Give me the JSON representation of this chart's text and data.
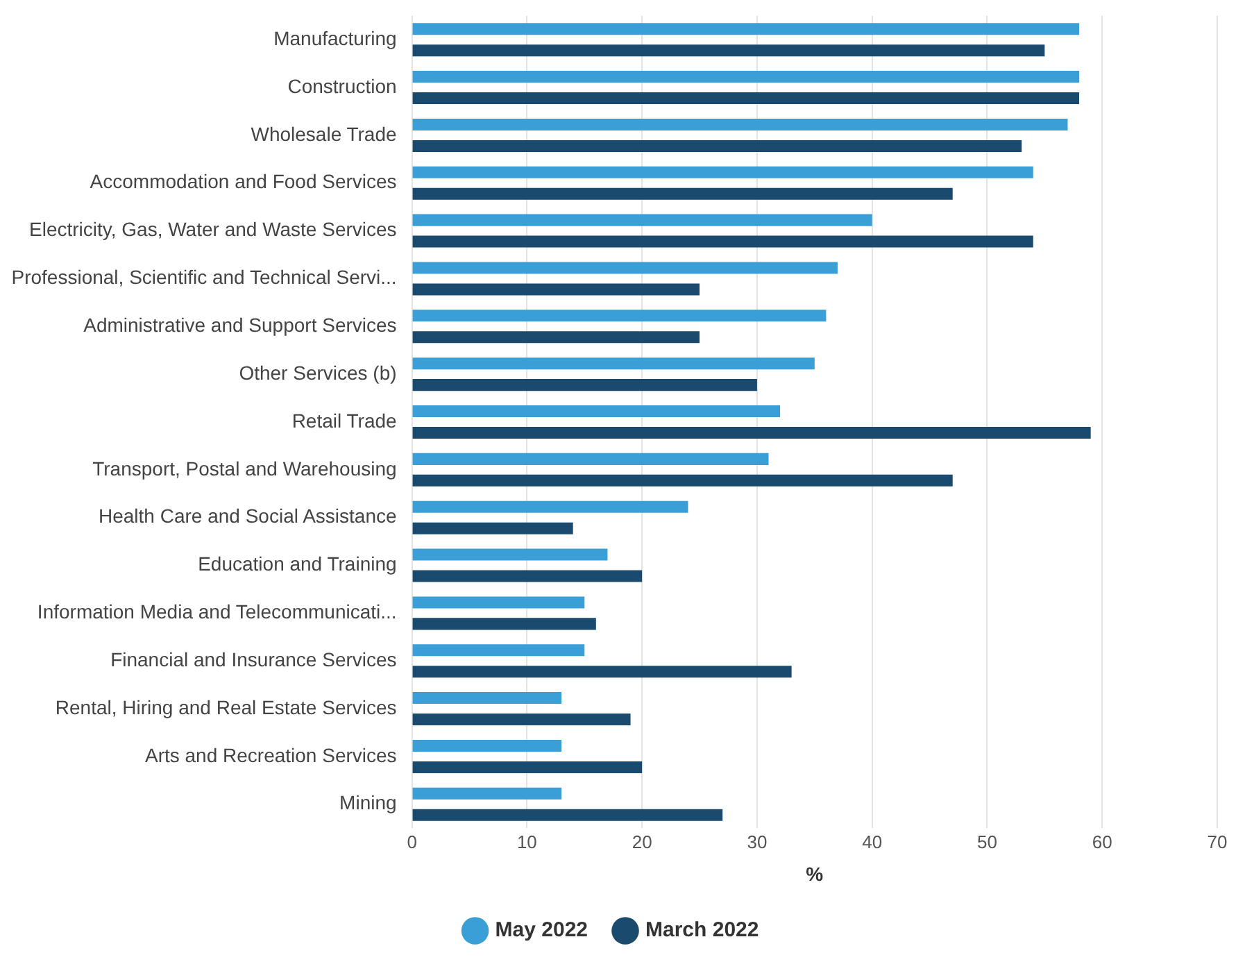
{
  "chart_data": {
    "type": "bar",
    "orientation": "horizontal",
    "xlabel": "%",
    "categories": [
      "Manufacturing",
      "Construction",
      "Wholesale Trade",
      "Accommodation and Food Services",
      "Electricity, Gas, Water and Waste Services",
      "Professional, Scientific and Technical Servi...",
      "Administrative and Support Services",
      "Other Services (b)",
      "Retail Trade",
      "Transport, Postal and Warehousing",
      "Health Care and Social Assistance",
      "Education and Training",
      "Information Media and Telecommunicati...",
      "Financial and Insurance Services",
      "Rental, Hiring and Real Estate Services",
      "Arts and Recreation Services",
      "Mining"
    ],
    "series": [
      {
        "name": "May 2022",
        "color": "#3a9fd6",
        "values": [
          58,
          58,
          57,
          54,
          40,
          37,
          36,
          35,
          32,
          31,
          24,
          17,
          15,
          15,
          13,
          13,
          13
        ]
      },
      {
        "name": "March 2022",
        "color": "#1a4a6e",
        "values": [
          55,
          58,
          53,
          47,
          54,
          25,
          25,
          30,
          59,
          47,
          14,
          20,
          16,
          33,
          19,
          20,
          27
        ]
      }
    ],
    "xlim": [
      0,
      70
    ],
    "xticks": [
      0,
      10,
      20,
      30,
      40,
      50,
      60,
      70
    ],
    "grid": "x",
    "legend": "bottom"
  }
}
